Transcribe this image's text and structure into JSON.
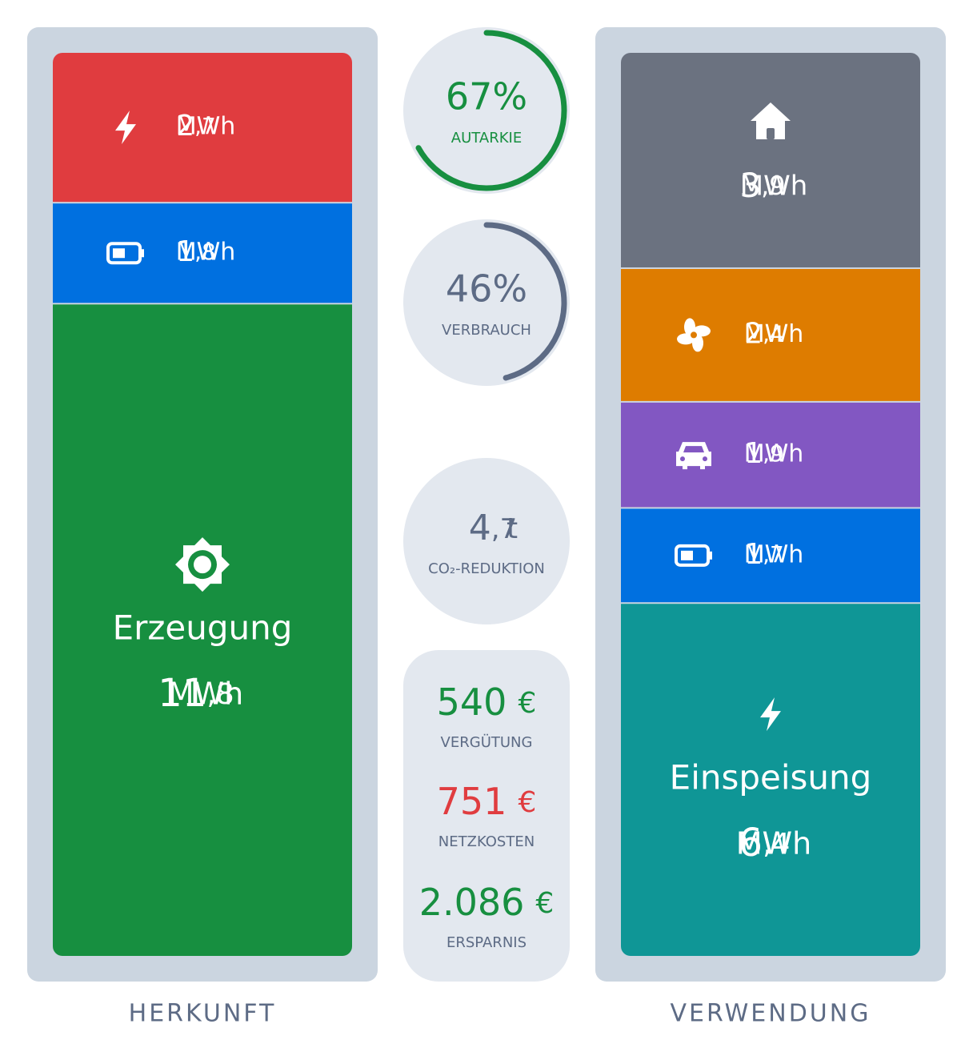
{
  "origin": {
    "label": "HERKUNFT",
    "segments": [
      {
        "value": 2.7,
        "value_label": "2,7",
        "unit": "MWh",
        "color": "#e03c3f"
      },
      {
        "value": 1.8,
        "value_label": "1,8",
        "unit": "MWh",
        "color": "#0070e0"
      },
      {
        "name": "Erzeugung",
        "value": 11.8,
        "value_label": "11,8",
        "unit": "MWh",
        "color": "#178f40"
      }
    ]
  },
  "usage": {
    "label": "VERWENDUNG",
    "segments": [
      {
        "value": 3.9,
        "value_label": "3,9",
        "unit": "MWh",
        "color": "#6b7280"
      },
      {
        "value": 2.4,
        "value_label": "2,4",
        "unit": "MWh",
        "color": "#de7c00"
      },
      {
        "value": 1.9,
        "value_label": "1,9",
        "unit": "MWh",
        "color": "#8257c2"
      },
      {
        "value": 1.7,
        "value_label": "1,7",
        "unit": "MWh",
        "color": "#0070e0"
      },
      {
        "name": "Einspeisung",
        "value": 6.4,
        "value_label": "6,4",
        "unit": "MWh",
        "color": "#0f9696"
      }
    ]
  },
  "metrics": [
    {
      "value": 67,
      "value_label": "67%",
      "label": "AUTARKIE",
      "color": "#178f40"
    },
    {
      "value": 46,
      "value_label": "46%",
      "label": "VERBRAUCH",
      "color": "#5d6b85"
    },
    {
      "value": 4.7,
      "value_label": "4,7",
      "unit": "t",
      "label": "CO₂-REDUKTION",
      "color": "#5d6b85"
    }
  ],
  "finance": [
    {
      "value": 540,
      "value_label": "540",
      "unit": "€",
      "label": "VERGÜTUNG",
      "color": "#178f40"
    },
    {
      "value": 751,
      "value_label": "751",
      "unit": "€",
      "label": "NETZKOSTEN",
      "color": "#e03c3f"
    },
    {
      "value": 2086,
      "value_label": "2.086",
      "unit": "€",
      "label": "ERSPARNIS",
      "color": "#178f40"
    }
  ]
}
